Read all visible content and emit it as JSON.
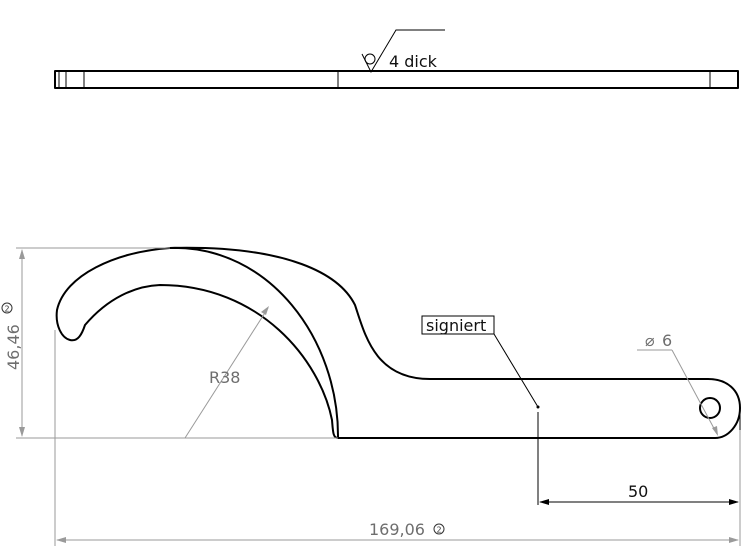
{
  "annotations": {
    "thickness": "4 dick",
    "radius": "R38",
    "hole_diameter_symbol": "⌀",
    "hole_diameter": "6",
    "height": "46,46",
    "overall_length": "169,06",
    "offset": "50",
    "signed_label": "signiert",
    "circled_mark": "2"
  }
}
